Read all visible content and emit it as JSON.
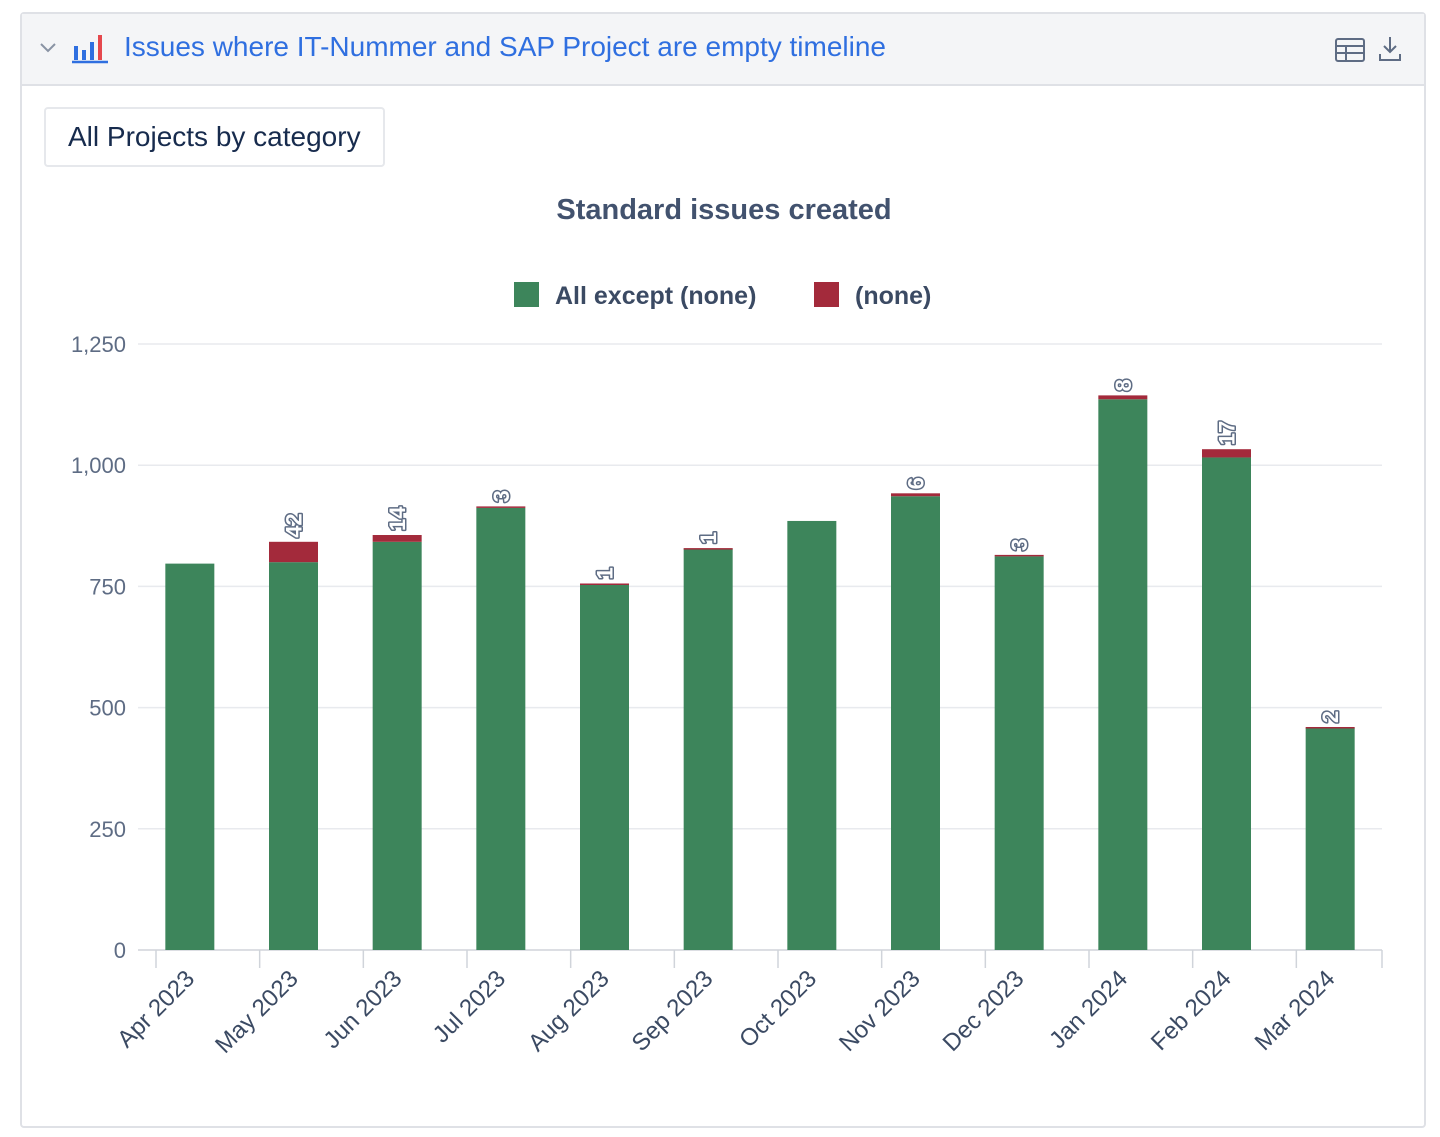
{
  "header": {
    "title": "Issues where IT-Nummer and SAP Project are empty timeline",
    "icons": [
      "chevron-down-icon",
      "bar-chart-icon",
      "table-icon",
      "download-icon"
    ]
  },
  "scope_button": {
    "label": "All Projects by category"
  },
  "chart_data": {
    "type": "bar",
    "stacked": true,
    "title": "Standard issues created",
    "xlabel": "",
    "ylabel": "",
    "ylim": [
      0,
      1250
    ],
    "yticks": [
      "0",
      "250",
      "500",
      "750",
      "1,000",
      "1,250"
    ],
    "ytick_values": [
      0,
      250,
      500,
      750,
      1000,
      1250
    ],
    "grid": true,
    "legend_position": "top-center",
    "categories": [
      "Apr 2023",
      "May 2023",
      "Jun 2023",
      "Jul 2023",
      "Aug 2023",
      "Sep 2023",
      "Oct 2023",
      "Nov 2023",
      "Dec 2023",
      "Jan 2024",
      "Feb 2024",
      "Mar 2024"
    ],
    "series": [
      {
        "name": "All except (none)",
        "color": "#3d855b",
        "values": [
          797,
          800,
          842,
          912,
          755,
          828,
          885,
          936,
          812,
          1136,
          1016,
          458
        ]
      },
      {
        "name": "(none)",
        "color": "#a32a3b",
        "values": [
          0,
          42,
          14,
          3,
          1,
          1,
          0,
          6,
          3,
          8,
          17,
          2
        ],
        "labels": [
          "",
          "42",
          "14",
          "3",
          "1",
          "1",
          "",
          "6",
          "3",
          "8",
          "17",
          "2"
        ]
      }
    ]
  }
}
